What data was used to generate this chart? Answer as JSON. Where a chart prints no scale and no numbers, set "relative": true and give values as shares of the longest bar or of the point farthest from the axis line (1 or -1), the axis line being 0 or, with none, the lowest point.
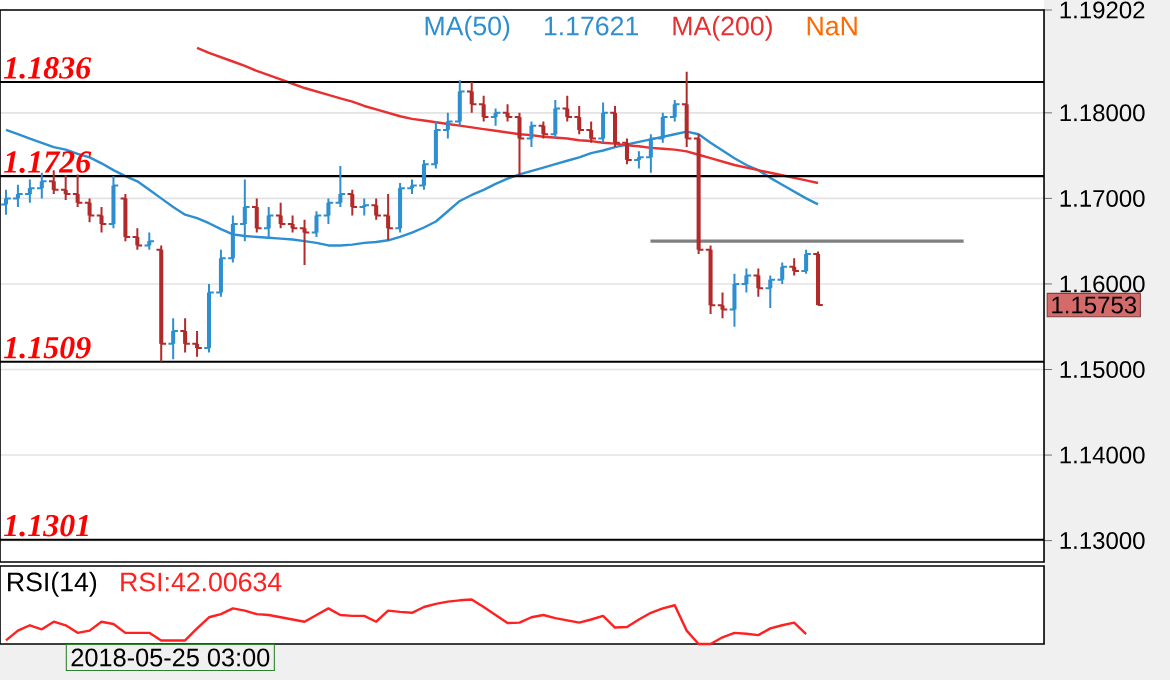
{
  "chart_data": [
    {
      "type": "candlestick",
      "categories": [
        null,
        null,
        null,
        null,
        null,
        null,
        null,
        null,
        null,
        null,
        null,
        null,
        null,
        null,
        null,
        null,
        null,
        null,
        null,
        null,
        null,
        null,
        null,
        null,
        null,
        null,
        null,
        null,
        null,
        null,
        null,
        null,
        null,
        null,
        null,
        null,
        null,
        null,
        null,
        null,
        null,
        null,
        null,
        null,
        null,
        null,
        null,
        null,
        null,
        null,
        null,
        null,
        null,
        null,
        null,
        null,
        null,
        null,
        null,
        null,
        null,
        null,
        null,
        null,
        null,
        null,
        null,
        null,
        null
      ],
      "ohlc": [
        [
          1.1693,
          1.171,
          1.1681,
          1.17
        ],
        [
          1.17,
          1.1716,
          1.169,
          1.1705
        ],
        [
          1.1705,
          1.1722,
          1.1695,
          1.1712
        ],
        [
          1.1712,
          1.173,
          1.17,
          1.172
        ],
        [
          1.172,
          1.1733,
          1.1705,
          1.171
        ],
        [
          1.171,
          1.1727,
          1.1698,
          1.1705
        ],
        [
          1.1705,
          1.1728,
          1.169,
          1.1695
        ],
        [
          1.1695,
          1.17,
          1.1672,
          1.168
        ],
        [
          1.168,
          1.169,
          1.166,
          1.167
        ],
        [
          1.167,
          1.1726,
          1.1665,
          1.1715
        ],
        [
          1.17,
          1.1705,
          1.165,
          1.1655
        ],
        [
          1.1655,
          1.1665,
          1.164,
          1.1645
        ],
        [
          1.1645,
          1.166,
          1.164,
          1.165
        ],
        [
          1.164,
          1.1645,
          1.1509,
          1.153
        ],
        [
          1.153,
          1.156,
          1.1512,
          1.1545
        ],
        [
          1.1545,
          1.156,
          1.152,
          1.153
        ],
        [
          1.153,
          1.1545,
          1.1515,
          1.1525
        ],
        [
          1.1525,
          1.16,
          1.152,
          1.159
        ],
        [
          1.159,
          1.164,
          1.1585,
          1.163
        ],
        [
          1.163,
          1.168,
          1.1625,
          1.167
        ],
        [
          1.167,
          1.1722,
          1.165,
          1.169
        ],
        [
          1.169,
          1.17,
          1.166,
          1.1665
        ],
        [
          1.1665,
          1.169,
          1.1655,
          1.168
        ],
        [
          1.168,
          1.1695,
          1.1665,
          1.167
        ],
        [
          1.167,
          1.168,
          1.166,
          1.1665
        ],
        [
          1.1665,
          1.1675,
          1.1622,
          1.166
        ],
        [
          1.166,
          1.1685,
          1.1655,
          1.168
        ],
        [
          1.168,
          1.17,
          1.167,
          1.1695
        ],
        [
          1.1695,
          1.1738,
          1.169,
          1.1705
        ],
        [
          1.1705,
          1.171,
          1.168,
          1.169
        ],
        [
          1.169,
          1.17,
          1.168,
          1.1692
        ],
        [
          1.1692,
          1.17,
          1.1675,
          1.168
        ],
        [
          1.168,
          1.1705,
          1.1651,
          1.1665
        ],
        [
          1.1665,
          1.1718,
          1.166,
          1.1712
        ],
        [
          1.1712,
          1.1722,
          1.1705,
          1.1715
        ],
        [
          1.1715,
          1.1745,
          1.171,
          1.174
        ],
        [
          1.174,
          1.179,
          1.1735,
          1.178
        ],
        [
          1.178,
          1.18,
          1.177,
          1.179
        ],
        [
          1.179,
          1.1838,
          1.1785,
          1.1825
        ],
        [
          1.1825,
          1.1836,
          1.18,
          1.181
        ],
        [
          1.181,
          1.182,
          1.179,
          1.1795
        ],
        [
          1.1795,
          1.1805,
          1.1785,
          1.18
        ],
        [
          1.18,
          1.181,
          1.179,
          1.1795
        ],
        [
          1.1795,
          1.18,
          1.1727,
          1.177
        ],
        [
          1.177,
          1.179,
          1.176,
          1.1785
        ],
        [
          1.1785,
          1.179,
          1.177,
          1.1775
        ],
        [
          1.1775,
          1.1815,
          1.177,
          1.1805
        ],
        [
          1.1805,
          1.182,
          1.179,
          1.1795
        ],
        [
          1.1795,
          1.1808,
          1.1775,
          1.178
        ],
        [
          1.178,
          1.179,
          1.1765,
          1.177
        ],
        [
          1.177,
          1.1812,
          1.1765,
          1.18
        ],
        [
          1.18,
          1.1808,
          1.176,
          1.1765
        ],
        [
          1.1765,
          1.177,
          1.174,
          1.1745
        ],
        [
          1.1745,
          1.1755,
          1.1735,
          1.1748
        ],
        [
          1.1748,
          1.1775,
          1.173,
          1.177
        ],
        [
          1.177,
          1.18,
          1.1765,
          1.1795
        ],
        [
          1.1795,
          1.1815,
          1.179,
          1.181
        ],
        [
          1.181,
          1.1848,
          1.176,
          1.177
        ],
        [
          1.177,
          1.1775,
          1.1635,
          1.164
        ],
        [
          1.164,
          1.1645,
          1.1565,
          1.1575
        ],
        [
          1.1575,
          1.159,
          1.156,
          1.157
        ],
        [
          1.157,
          1.1612,
          1.155,
          1.16
        ],
        [
          1.16,
          1.1618,
          1.159,
          1.161
        ],
        [
          1.161,
          1.1618,
          1.1585,
          1.1595
        ],
        [
          1.1595,
          1.161,
          1.1572,
          1.1605
        ],
        [
          1.1605,
          1.1625,
          1.16,
          1.162
        ],
        [
          1.162,
          1.163,
          1.161,
          1.1615
        ],
        [
          1.1615,
          1.164,
          1.1612,
          1.1635
        ],
        [
          1.1635,
          1.1638,
          1.1575,
          1.15753
        ]
      ],
      "ylim": [
        1.1275,
        1.19202
      ],
      "yticks": [
        {
          "value": 1.13,
          "label": "1.13000"
        },
        {
          "value": 1.14,
          "label": "1.14000"
        },
        {
          "value": 1.15,
          "label": "1.15000"
        },
        {
          "value": 1.16,
          "label": "1.16000"
        },
        {
          "value": 1.17,
          "label": "1.17000"
        },
        {
          "value": 1.18,
          "label": "1.18000"
        },
        {
          "value": 1.19202,
          "label": "1.19202"
        }
      ],
      "tick_labels": "y",
      "grid": "y",
      "series": [
        {
          "name": "MA(50)",
          "type": "line",
          "color": "#2e8fd0",
          "values": [
            1.178,
            1.1775,
            1.177,
            1.1765,
            1.176,
            1.1757,
            1.1752,
            1.1748,
            1.1741,
            1.1733,
            1.1726,
            1.172,
            1.171,
            1.17,
            1.169,
            1.1681,
            1.1677,
            1.1671,
            1.1664,
            1.1658,
            1.1656,
            1.1655,
            1.1654,
            1.1653,
            1.1652,
            1.165,
            1.1648,
            1.1645,
            1.1645,
            1.1646,
            1.1648,
            1.1649,
            1.1651,
            1.1655,
            1.166,
            1.1666,
            1.1673,
            1.1685,
            1.1697,
            1.1704,
            1.171,
            1.1717,
            1.1723,
            1.1728,
            1.1732,
            1.1736,
            1.174,
            1.1744,
            1.1748,
            1.1753,
            1.1756,
            1.176,
            1.1763,
            1.1766,
            1.1769,
            1.1772,
            1.1775,
            1.1778,
            1.1775,
            1.1765,
            1.1756,
            1.1747,
            1.1739,
            1.1733,
            1.1724,
            1.1716,
            1.1708,
            1.17,
            1.1693
          ]
        },
        {
          "name": "MA(200)",
          "type": "line",
          "color": "#e83030",
          "values": [
            null,
            null,
            null,
            null,
            null,
            null,
            null,
            null,
            null,
            null,
            null,
            null,
            null,
            null,
            null,
            null,
            1.1876,
            1.187,
            1.1865,
            1.186,
            1.1855,
            1.1849,
            1.1844,
            1.1839,
            1.1834,
            1.1829,
            1.1825,
            1.1821,
            1.1817,
            1.1813,
            1.1808,
            1.1804,
            1.18,
            1.1796,
            1.1793,
            1.1791,
            1.1789,
            1.1787,
            1.1785,
            1.1783,
            1.1781,
            1.1779,
            1.1777,
            1.1775,
            1.1774,
            1.1772,
            1.1771,
            1.177,
            1.1768,
            1.1767,
            1.1765,
            1.1764,
            1.1762,
            1.1761,
            1.1759,
            1.1758,
            1.1757,
            1.1755,
            1.1751,
            1.1747,
            1.1743,
            1.1739,
            1.1736,
            1.1733,
            1.173,
            1.1727,
            1.1724,
            1.1721,
            1.1718
          ]
        }
      ],
      "ref_lines": [
        {
          "axis": "y",
          "value": 1.1836,
          "label": "1.1836",
          "color": "#000000"
        },
        {
          "axis": "y",
          "value": 1.1726,
          "label": "1.1726",
          "color": "#000000"
        },
        {
          "axis": "y",
          "value": 1.1509,
          "label": "1.1509",
          "color": "#000000"
        },
        {
          "axis": "y",
          "value": 1.1301,
          "label": "1.1301",
          "color": "#000000"
        },
        {
          "axis": "y",
          "value": 1.165,
          "color": "#808080"
        }
      ],
      "annotations": [
        "1.17621",
        "NaN",
        "1.15753"
      ]
    },
    {
      "type": "line",
      "title": "RSI(14)",
      "relative": true,
      "tick_labels": false,
      "categories": [
        null,
        null,
        null,
        null,
        null,
        null,
        null,
        null,
        null,
        null,
        null,
        null,
        null,
        null,
        null,
        null,
        null,
        null,
        null,
        null,
        null,
        null,
        null,
        null,
        null,
        null,
        null,
        null,
        null,
        null,
        null,
        null,
        null,
        null,
        null,
        null,
        null,
        null,
        null,
        null,
        null,
        null,
        null,
        null,
        null,
        null,
        null,
        null,
        null,
        null,
        null,
        null,
        null,
        null,
        null,
        null,
        null,
        null,
        null,
        null,
        null,
        null,
        null,
        null,
        null,
        null,
        null,
        null,
        null
      ],
      "series": [
        {
          "name": "RSI:42.00634",
          "color": "#ff2020",
          "values": [
            0.08,
            0.3,
            0.42,
            0.33,
            0.5,
            0.42,
            0.25,
            0.3,
            0.5,
            0.45,
            0.25,
            0.25,
            0.25,
            0.08,
            0.08,
            0.08,
            0.35,
            0.6,
            0.67,
            0.8,
            0.75,
            0.67,
            0.65,
            0.6,
            0.55,
            0.5,
            0.65,
            0.8,
            0.65,
            0.63,
            0.63,
            0.5,
            0.75,
            0.72,
            0.7,
            0.83,
            0.9,
            0.95,
            0.98,
            1.0,
            0.83,
            0.65,
            0.47,
            0.48,
            0.6,
            0.65,
            0.58,
            0.53,
            0.48,
            0.55,
            0.63,
            0.37,
            0.38,
            0.55,
            0.7,
            0.8,
            0.87,
            0.3,
            0,
            0,
            0.15,
            0.25,
            0.23,
            0.2,
            0.35,
            0.42,
            0.48,
            0.22,
            null
          ]
        }
      ],
      "annotations": [
        "2018-05-25 03:00"
      ]
    }
  ]
}
